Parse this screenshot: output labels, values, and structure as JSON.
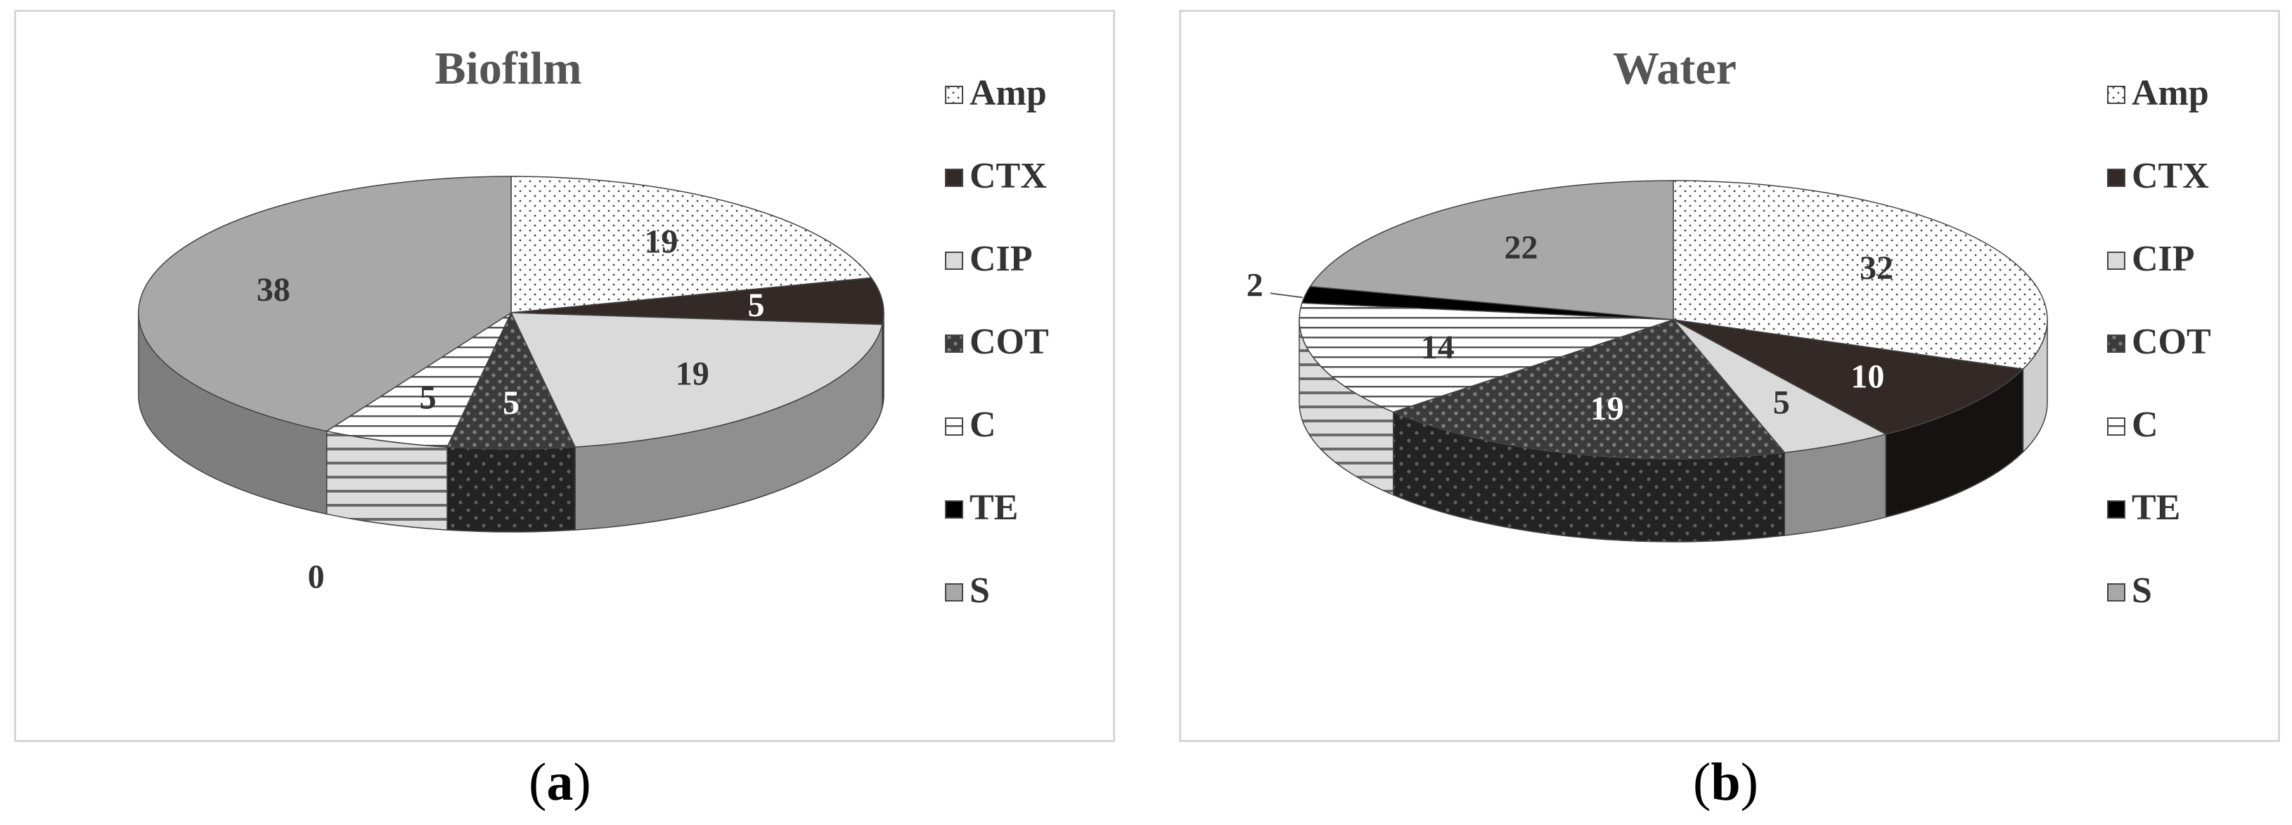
{
  "chart_data": [
    {
      "type": "pie",
      "title": "Biofilm",
      "categories": [
        "Amp",
        "CTX",
        "CIP",
        "COT",
        "C",
        "TE",
        "S"
      ],
      "values": [
        19,
        5,
        19,
        5,
        5,
        0,
        38
      ],
      "legend": "right"
    },
    {
      "type": "pie",
      "title": "Water",
      "categories": [
        "Amp",
        "CTX",
        "CIP",
        "COT",
        "C",
        "TE",
        "S"
      ],
      "values": [
        32,
        10,
        5,
        19,
        14,
        2,
        22
      ],
      "legend": "right"
    }
  ],
  "captions": {
    "a": {
      "open": "(",
      "letter": "a",
      "close": ")"
    },
    "b": {
      "open": "(",
      "letter": "b",
      "close": ")"
    }
  },
  "styles": {
    "Amp": {
      "fill": "url(#pat-amp)",
      "side": "#cfcfcf",
      "label": "#333333"
    },
    "CTX": {
      "fill": "#332a28",
      "side": "#171212",
      "label": "#ffffff"
    },
    "CIP": {
      "fill": "#dadada",
      "side": "#8f8f8f",
      "label": "#333333"
    },
    "COT": {
      "fill": "url(#pat-cot)",
      "side": "url(#pat-cot-side)",
      "label": "#ffffff"
    },
    "C": {
      "fill": "url(#pat-c)",
      "side": "url(#pat-c-side)",
      "label": "#333333"
    },
    "TE": {
      "fill": "#000000",
      "side": "#000000",
      "label": "#333333"
    },
    "S": {
      "fill": "#a8a8a8",
      "side": "#7e7e7e",
      "label": "#333333"
    }
  }
}
